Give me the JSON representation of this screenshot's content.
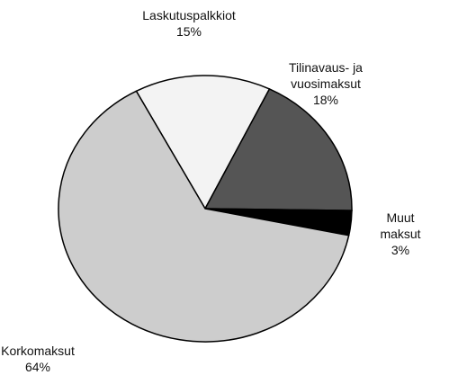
{
  "chart_data": {
    "type": "pie",
    "categories": [
      "Laskutuspalkkiot",
      "Tilinavaus- ja vuosimaksut",
      "Muut maksut",
      "Korkomaksut"
    ],
    "values": [
      15,
      18,
      3,
      64
    ],
    "value_labels": [
      "15%",
      "18%",
      "3%",
      "64%"
    ],
    "colors": [
      "#f3f3f3",
      "#555555",
      "#000000",
      "#cdcdcd"
    ]
  }
}
